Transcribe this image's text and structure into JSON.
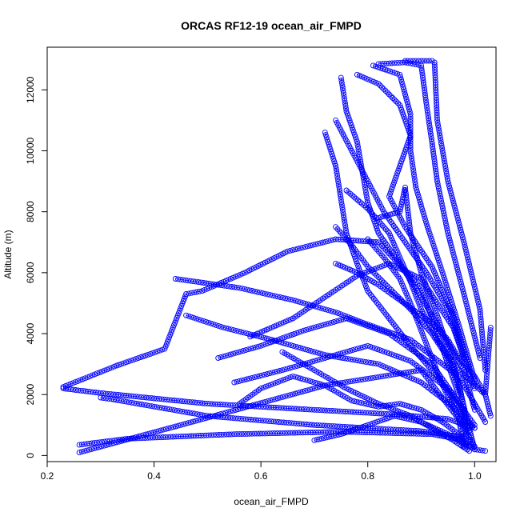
{
  "chart_data": {
    "type": "scatter",
    "title": "ORCAS RF12-19 ocean_air_FMPD",
    "xlabel": "ocean_air_FMPD",
    "ylabel": "Altitude (m)",
    "xlim": [
      0.2,
      1.04
    ],
    "ylim": [
      -200,
      13400
    ],
    "x_ticks": [
      0.2,
      0.4,
      0.6,
      0.8,
      1.0
    ],
    "x_tick_labels": [
      "0.2",
      "0.4",
      "0.6",
      "0.8",
      "1.0"
    ],
    "y_ticks": [
      0,
      2000,
      4000,
      6000,
      8000,
      10000,
      12000
    ],
    "y_tick_labels": [
      "0",
      "2000",
      "4000",
      "6000",
      "8000",
      "10000",
      "12000"
    ],
    "grid": false,
    "legend": "none",
    "marker": "open-circle",
    "color": "#0000ff",
    "series": [
      {
        "x": [
          0.26,
          0.45,
          0.72,
          0.9,
          0.97,
          0.98
        ],
        "y": [
          100,
          1000,
          2300,
          2800,
          1200,
          300
        ]
      },
      {
        "x": [
          0.26,
          0.35,
          0.55,
          0.75,
          0.92,
          0.98
        ],
        "y": [
          350,
          550,
          700,
          780,
          700,
          500
        ]
      },
      {
        "x": [
          0.23,
          0.3,
          0.5,
          0.7,
          0.85,
          0.95,
          1.0
        ],
        "y": [
          2200,
          2050,
          1700,
          1500,
          1350,
          1200,
          900
        ]
      },
      {
        "x": [
          0.3,
          0.32,
          0.5,
          0.7,
          0.9,
          0.98
        ],
        "y": [
          1900,
          1850,
          1300,
          1000,
          800,
          600
        ]
      },
      {
        "x": [
          0.23,
          0.28,
          0.33,
          0.42,
          0.46,
          0.49,
          0.57,
          0.65,
          0.74,
          0.82,
          0.9,
          0.97
        ],
        "y": [
          2250,
          2600,
          2950,
          3500,
          5300,
          5400,
          6000,
          6700,
          7100,
          7000,
          5500,
          2000
        ]
      },
      {
        "x": [
          0.46,
          0.53,
          0.62,
          0.72,
          0.82,
          0.9,
          0.96,
          1.0
        ],
        "y": [
          4600,
          4200,
          3800,
          3300,
          3000,
          2400,
          1600,
          900
        ]
      },
      {
        "x": [
          0.52,
          0.6,
          0.68,
          0.76,
          0.84,
          0.92,
          0.98
        ],
        "y": [
          3200,
          3600,
          4100,
          4500,
          4000,
          3000,
          1500
        ]
      },
      {
        "x": [
          0.55,
          0.64,
          0.72,
          0.8,
          0.88,
          0.95,
          1.0
        ],
        "y": [
          2400,
          2800,
          3200,
          3600,
          3100,
          2200,
          1000
        ]
      },
      {
        "x": [
          0.44,
          0.56,
          0.66,
          0.74,
          0.8,
          0.88,
          0.97,
          1.02
        ],
        "y": [
          5800,
          5500,
          5100,
          4700,
          4300,
          3800,
          2600,
          1100
        ]
      },
      {
        "x": [
          0.58,
          0.66,
          0.72,
          0.78,
          0.84,
          0.9,
          0.96,
          1.0
        ],
        "y": [
          3900,
          4500,
          5200,
          5900,
          6300,
          5800,
          4200,
          2200
        ]
      },
      {
        "x": [
          0.72,
          0.74,
          0.75,
          0.76,
          0.78,
          0.8,
          0.84,
          0.88,
          0.93,
          0.97,
          0.99
        ],
        "y": [
          10600,
          9500,
          8400,
          7300,
          6300,
          5400,
          4500,
          3600,
          2600,
          1600,
          800
        ]
      },
      {
        "x": [
          0.75,
          0.76,
          0.78,
          0.79,
          0.8,
          0.82,
          0.86,
          0.9,
          0.94,
          0.98,
          1.0
        ],
        "y": [
          12400,
          11300,
          10300,
          9300,
          8300,
          7300,
          6300,
          5200,
          4000,
          2800,
          1500
        ]
      },
      {
        "x": [
          0.74,
          0.77,
          0.8,
          0.83,
          0.87,
          0.91,
          0.95,
          0.98
        ],
        "y": [
          11000,
          10000,
          9000,
          8000,
          7000,
          6000,
          4800,
          3200
        ]
      },
      {
        "x": [
          0.78,
          0.82,
          0.86,
          0.88,
          0.86,
          0.84,
          0.87,
          0.92,
          0.96,
          0.99
        ],
        "y": [
          12500,
          12200,
          11500,
          10500,
          9500,
          8500,
          7500,
          6200,
          4600,
          2900
        ]
      },
      {
        "x": [
          0.81,
          0.86,
          0.88,
          0.88,
          0.89,
          0.91,
          0.94,
          0.97,
          1.0
        ],
        "y": [
          12800,
          12500,
          11200,
          10000,
          8800,
          7600,
          6000,
          4300,
          2500
        ]
      },
      {
        "x": [
          0.82,
          0.87,
          0.9,
          0.91,
          0.92,
          0.93,
          0.95,
          0.98,
          1.01
        ],
        "y": [
          12850,
          12900,
          12800,
          11500,
          10300,
          9000,
          7300,
          5300,
          3200
        ]
      },
      {
        "x": [
          0.87,
          0.91,
          0.92,
          0.925,
          0.93,
          0.95,
          0.98,
          1.01,
          1.02
        ],
        "y": [
          12950,
          12950,
          12950,
          12900,
          11000,
          9000,
          7000,
          4800,
          2800
        ]
      },
      {
        "x": [
          0.82,
          0.86,
          0.87,
          0.88,
          0.9,
          0.93,
          0.96,
          0.98,
          0.985
        ],
        "y": [
          7800,
          8000,
          8800,
          7300,
          6000,
          4600,
          3000,
          1600,
          300
        ]
      },
      {
        "x": [
          0.74,
          0.78,
          0.82,
          0.86,
          0.9,
          0.93,
          0.95,
          0.97,
          1.0,
          1.02,
          1.03
        ],
        "y": [
          6300,
          6000,
          5600,
          5100,
          4600,
          4200,
          3800,
          3200,
          2600,
          2000,
          1300
        ]
      },
      {
        "x": [
          0.8,
          0.83,
          0.86,
          0.88,
          0.9,
          0.92,
          0.94,
          0.96,
          0.98,
          1.0
        ],
        "y": [
          7100,
          6500,
          5800,
          5000,
          4100,
          3200,
          2300,
          1600,
          900,
          300
        ]
      },
      {
        "x": [
          0.76,
          0.8,
          0.84,
          0.86,
          0.88,
          0.9,
          0.93,
          0.97,
          1.02,
          1.03
        ],
        "y": [
          8700,
          8100,
          7300,
          6500,
          5700,
          4800,
          3800,
          2800,
          2000,
          4200
        ]
      },
      {
        "x": [
          0.56,
          0.6,
          0.66,
          0.72,
          0.77,
          0.82,
          0.86,
          0.9,
          0.94,
          0.97,
          0.99
        ],
        "y": [
          1700,
          2200,
          2600,
          2300,
          1800,
          1600,
          1700,
          1500,
          1100,
          700,
          300
        ]
      },
      {
        "x": [
          0.7,
          0.75,
          0.8,
          0.85,
          0.9,
          0.95,
          0.98,
          1.0,
          1.02
        ],
        "y": [
          500,
          700,
          1000,
          1300,
          1100,
          700,
          400,
          200,
          150
        ]
      },
      {
        "x": [
          0.64,
          0.7,
          0.76,
          0.82,
          0.88,
          0.92,
          0.96,
          0.99
        ],
        "y": [
          3400,
          2800,
          2200,
          1700,
          1300,
          900,
          500,
          150
        ]
      },
      {
        "x": [
          0.74,
          0.77,
          0.8,
          0.84,
          0.88,
          0.92,
          0.95,
          0.97,
          0.98,
          0.99,
          1.0
        ],
        "y": [
          7500,
          6900,
          6200,
          5500,
          4800,
          4000,
          3200,
          2400,
          1600,
          900,
          200
        ]
      }
    ]
  }
}
